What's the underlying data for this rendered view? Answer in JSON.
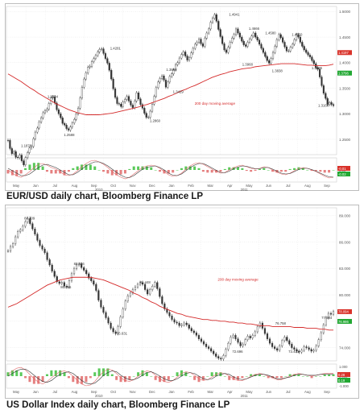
{
  "captions": {
    "chart1": "EUR/USD daily chart, Bloomberg Finance LP",
    "chart2": "US Dollar Index daily chart, Bloomberg Finance LP"
  },
  "colors": {
    "price": "#333333",
    "ma": "#d42a2a",
    "osc_green": "#3cbf3c",
    "osc_red": "#e06a6a",
    "tag_red": "#d9322a",
    "tag_green": "#22a833",
    "grid": "#e2e2e2"
  },
  "chart_data": [
    {
      "type": "line",
      "title": "EUR/USD daily chart, Bloomberg Finance LP",
      "y_ticks": [
        "1.5000",
        "1.4500",
        "1.4000",
        "1.3500",
        "1.3000",
        "1.2500"
      ],
      "ylim": [
        1.22,
        1.51
      ],
      "x_month_labels": [
        "May",
        "Jun",
        "Jul",
        "Aug",
        "Sep",
        "Oct",
        "Nov",
        "Dec",
        "Jan",
        "Feb",
        "Mar",
        "Apr",
        "May",
        "Jun",
        "Jul",
        "Aug",
        "Sep"
      ],
      "x_year_labels": [
        "2010",
        "2011"
      ],
      "ma_label": "200 day moving average",
      "annotations": [
        {
          "text": "1.1876",
          "x": 0.06,
          "y": 1.1876
        },
        {
          "text": "1.3334",
          "x": 0.14,
          "y": 1.3334
        },
        {
          "text": "1.2588",
          "x": 0.19,
          "y": 1.2588
        },
        {
          "text": "1.4281",
          "x": 0.33,
          "y": 1.4281
        },
        {
          "text": "1.3863",
          "x": 0.5,
          "y": 1.3863
        },
        {
          "text": "1.2860",
          "x": 0.45,
          "y": 1.286
        },
        {
          "text": "1.3429",
          "x": 0.52,
          "y": 1.3429
        },
        {
          "text": "1.4941",
          "x": 0.69,
          "y": 1.4941
        },
        {
          "text": "1.4666",
          "x": 0.75,
          "y": 1.4666
        },
        {
          "text": "1.3968",
          "x": 0.73,
          "y": 1.3968
        },
        {
          "text": "1.4580",
          "x": 0.8,
          "y": 1.458
        },
        {
          "text": "1.3838",
          "x": 0.82,
          "y": 1.3838
        },
        {
          "text": "1.4550",
          "x": 0.88,
          "y": 1.455
        },
        {
          "text": "1.3895",
          "x": 0.94,
          "y": 1.3895
        },
        {
          "text": "1.3164",
          "x": 0.96,
          "y": 1.3164
        }
      ],
      "price_tags": [
        {
          "text": "1.4197",
          "y": 1.4197,
          "color": "red"
        },
        {
          "text": "1.3796",
          "y": 1.3796,
          "color": "green"
        }
      ],
      "osc_tags": [
        {
          "text": "-0.01",
          "color": "red"
        },
        {
          "text": "-0.02",
          "color": "green"
        }
      ],
      "osc_ticks": [
        "0.00"
      ],
      "series": [
        {
          "name": "price",
          "values": [
            1.248,
            1.232,
            1.222,
            1.226,
            1.215,
            1.214,
            1.219,
            1.208,
            1.2,
            1.214,
            1.224,
            1.233,
            1.236,
            1.251,
            1.264,
            1.272,
            1.284,
            1.292,
            1.302,
            1.306,
            1.309,
            1.32,
            1.331,
            1.333,
            1.321,
            1.308,
            1.3,
            1.292,
            1.281,
            1.278,
            1.271,
            1.268,
            1.274,
            1.282,
            1.289,
            1.3,
            1.311,
            1.331,
            1.352,
            1.368,
            1.38,
            1.391,
            1.393,
            1.402,
            1.408,
            1.414,
            1.421,
            1.426,
            1.427,
            1.418,
            1.408,
            1.399,
            1.385,
            1.368,
            1.349,
            1.332,
            1.32,
            1.319,
            1.314,
            1.323,
            1.328,
            1.334,
            1.325,
            1.317,
            1.312,
            1.325,
            1.341,
            1.329,
            1.318,
            1.311,
            1.301,
            1.293,
            1.293,
            1.305,
            1.319,
            1.334,
            1.351,
            1.362,
            1.369,
            1.374,
            1.366,
            1.352,
            1.362,
            1.373,
            1.378,
            1.386,
            1.396,
            1.4,
            1.409,
            1.416,
            1.421,
            1.413,
            1.405,
            1.41,
            1.419,
            1.428,
            1.436,
            1.44,
            1.446,
            1.437,
            1.432,
            1.448,
            1.458,
            1.466,
            1.479,
            1.487,
            1.494,
            1.481,
            1.465,
            1.451,
            1.437,
            1.425,
            1.42,
            1.43,
            1.44,
            1.448,
            1.455,
            1.466,
            1.458,
            1.45,
            1.442,
            1.435,
            1.432,
            1.44,
            1.446,
            1.452,
            1.458,
            1.45,
            1.444,
            1.436,
            1.428,
            1.42,
            1.412,
            1.404,
            1.399,
            1.408,
            1.42,
            1.432,
            1.445,
            1.455,
            1.449,
            1.44,
            1.431,
            1.423,
            1.423,
            1.43,
            1.436,
            1.445,
            1.455,
            1.45,
            1.44,
            1.432,
            1.425,
            1.42,
            1.415,
            1.411,
            1.404,
            1.398,
            1.39,
            1.387,
            1.372,
            1.355,
            1.34,
            1.33,
            1.318,
            1.322,
            1.318,
            1.316
          ]
        },
        {
          "name": "200 day moving average",
          "values": [
            1.378,
            1.373,
            1.368,
            1.363,
            1.357,
            1.351,
            1.346,
            1.34,
            1.335,
            1.33,
            1.325,
            1.32,
            1.316,
            1.312,
            1.308,
            1.305,
            1.302,
            1.3,
            1.298,
            1.298,
            1.298,
            1.298,
            1.299,
            1.3,
            1.301,
            1.303,
            1.305,
            1.307,
            1.309,
            1.311,
            1.313,
            1.316,
            1.318,
            1.321,
            1.324,
            1.327,
            1.33,
            1.334,
            1.337,
            1.341,
            1.345,
            1.348,
            1.352,
            1.355,
            1.359,
            1.363,
            1.367,
            1.371,
            1.374,
            1.377,
            1.379,
            1.382,
            1.384,
            1.386,
            1.388,
            1.389,
            1.39,
            1.392,
            1.393,
            1.394,
            1.395,
            1.396,
            1.397,
            1.398,
            1.398,
            1.398,
            1.398,
            1.397,
            1.396,
            1.395,
            1.395,
            1.394,
            1.394,
            1.394,
            1.395,
            1.397
          ]
        }
      ],
      "osc_series": [
        {
          "name": "fast",
          "values": [
            0.0,
            -0.008,
            -0.015,
            -0.018,
            -0.012,
            -0.004,
            0.006,
            0.014,
            0.016,
            0.012,
            0.006,
            0.002,
            -0.004,
            -0.012,
            -0.014,
            -0.01,
            -0.002,
            0.008,
            0.016,
            0.022,
            0.024,
            0.02,
            0.014,
            0.006,
            -0.004,
            -0.012,
            -0.018,
            -0.022,
            -0.018,
            -0.01,
            -0.002,
            0.006,
            0.01,
            0.012,
            0.01,
            0.004,
            -0.004,
            -0.012,
            -0.016,
            -0.014,
            -0.008,
            0.002,
            0.01,
            0.016,
            0.018,
            0.014,
            0.008,
            0.002,
            -0.004,
            -0.008,
            -0.006,
            0.0,
            0.006,
            0.01,
            0.012,
            0.008,
            0.004,
            0.002,
            0.004,
            0.008,
            0.006,
            0.0,
            -0.006,
            -0.01,
            -0.012,
            -0.008,
            -0.002,
            0.004,
            0.006,
            0.004,
            0.0,
            -0.004,
            -0.01,
            -0.016,
            -0.02,
            -0.018
          ]
        },
        {
          "name": "slow",
          "values": [
            0.004,
            -0.002,
            -0.008,
            -0.014,
            -0.014,
            -0.01,
            -0.002,
            0.006,
            0.012,
            0.014,
            0.01,
            0.006,
            0.0,
            -0.006,
            -0.012,
            -0.012,
            -0.006,
            0.002,
            0.01,
            0.016,
            0.02,
            0.02,
            0.016,
            0.01,
            0.002,
            -0.006,
            -0.013,
            -0.018,
            -0.019,
            -0.014,
            -0.006,
            0.002,
            0.006,
            0.009,
            0.01,
            0.006,
            0.0,
            -0.008,
            -0.013,
            -0.014,
            -0.01,
            -0.002,
            0.006,
            0.012,
            0.016,
            0.016,
            0.011,
            0.005,
            -0.001,
            -0.006,
            -0.007,
            -0.003,
            0.003,
            0.007,
            0.01,
            0.009,
            0.006,
            0.003,
            0.003,
            0.006,
            0.006,
            0.002,
            -0.003,
            -0.008,
            -0.01,
            -0.009,
            -0.004,
            0.001,
            0.004,
            0.004,
            0.001,
            -0.003,
            -0.008,
            -0.013,
            -0.017,
            -0.018
          ]
        }
      ]
    },
    {
      "type": "line",
      "title": "US Dollar Index daily chart, Bloomberg Finance LP",
      "y_ticks": [
        "89.000",
        "86.000",
        "83.000",
        "80.000",
        "77.000",
        "74.000"
      ],
      "ylim": [
        72.5,
        89.9
      ],
      "x_month_labels": [
        "May",
        "Jun",
        "Jul",
        "Aug",
        "Sep",
        "Oct",
        "Nov",
        "Dec",
        "Jan",
        "Feb",
        "Mar",
        "Apr",
        "May",
        "Jun",
        "Jul",
        "Aug",
        "Sep"
      ],
      "x_year_labels": [
        "2010",
        "2011"
      ],
      "ma_label": "200 day moving average",
      "annotations": [
        {
          "text": "88.709",
          "x": 0.07,
          "y": 88.709
        },
        {
          "text": "83.556",
          "x": 0.22,
          "y": 83.556
        },
        {
          "text": "80.865",
          "x": 0.18,
          "y": 80.865
        },
        {
          "text": "81.448",
          "x": 0.42,
          "y": 81.448
        },
        {
          "text": "75.631",
          "x": 0.35,
          "y": 75.631
        },
        {
          "text": "76.758",
          "x": 0.83,
          "y": 76.758
        },
        {
          "text": "72.696",
          "x": 0.7,
          "y": 72.696
        },
        {
          "text": "73.421",
          "x": 0.87,
          "y": 73.421
        },
        {
          "text": "77.384",
          "x": 0.97,
          "y": 77.384
        }
      ],
      "price_tags": [
        {
          "text": "78.094",
          "y": 78.094,
          "color": "red"
        },
        {
          "text": "76.986",
          "y": 76.986,
          "color": "green"
        }
      ],
      "osc_tags": [
        {
          "text": "0.28",
          "color": "red"
        },
        {
          "text": "0.19",
          "color": "green"
        }
      ],
      "osc_ticks": [
        "1.000",
        "0.000",
        "-1.000"
      ],
      "series": [
        {
          "name": "price",
          "values": [
            85.0,
            85.5,
            85.8,
            86.6,
            87.2,
            87.4,
            87.8,
            88.3,
            88.7,
            88.1,
            87.5,
            86.9,
            86.2,
            85.6,
            85.2,
            84.8,
            84.0,
            83.4,
            82.7,
            82.1,
            81.5,
            81.3,
            81.4,
            81.0,
            80.9,
            81.6,
            82.4,
            83.0,
            83.4,
            83.5,
            83.1,
            82.8,
            82.4,
            81.9,
            81.6,
            81.2,
            80.5,
            79.4,
            78.6,
            78.0,
            77.4,
            76.8,
            76.2,
            75.8,
            75.6,
            76.4,
            77.5,
            78.4,
            79.3,
            79.9,
            80.2,
            80.6,
            80.9,
            81.2,
            81.4,
            81.2,
            80.6,
            80.1,
            80.6,
            81.0,
            81.4,
            80.7,
            79.8,
            79.0,
            78.4,
            78.0,
            77.6,
            77.2,
            76.9,
            76.8,
            76.5,
            76.6,
            76.8,
            76.6,
            76.2,
            75.9,
            75.7,
            75.4,
            75.0,
            74.7,
            74.4,
            74.1,
            73.9,
            73.6,
            73.3,
            73.0,
            72.8,
            72.7,
            73.1,
            73.8,
            74.5,
            75.2,
            75.4,
            75.0,
            74.6,
            74.2,
            74.4,
            74.9,
            75.3,
            75.1,
            75.4,
            75.8,
            76.4,
            76.8,
            76.2,
            75.6,
            75.0,
            74.5,
            74.1,
            73.9,
            73.7,
            74.2,
            74.8,
            75.2,
            74.8,
            74.4,
            74.0,
            73.8,
            73.6,
            73.5,
            73.7,
            74.1,
            74.0,
            73.8,
            73.6,
            73.7,
            74.2,
            74.9,
            75.7,
            76.6,
            77.4,
            77.9,
            77.8,
            78.1
          ]
        },
        {
          "name": "200 day moving average",
          "values": [
            78.6,
            78.8,
            79.0,
            79.3,
            79.6,
            79.9,
            80.2,
            80.5,
            80.8,
            81.1,
            81.3,
            81.5,
            81.7,
            81.8,
            81.9,
            82.0,
            82.0,
            82.0,
            82.0,
            82.0,
            81.9,
            81.8,
            81.7,
            81.5,
            81.3,
            81.1,
            80.9,
            80.7,
            80.5,
            80.2,
            80.0,
            79.7,
            79.5,
            79.2,
            79.0,
            78.7,
            78.5,
            78.3,
            78.1,
            77.9,
            77.8,
            77.6,
            77.5,
            77.4,
            77.3,
            77.2,
            77.2,
            77.1,
            77.1,
            77.0,
            77.0,
            76.9,
            76.9,
            76.8,
            76.8,
            76.7,
            76.7,
            76.6,
            76.5,
            76.5,
            76.5,
            76.4,
            76.4,
            76.4,
            76.4,
            76.4,
            76.3,
            76.3,
            76.3,
            76.2,
            76.2,
            76.2,
            76.1,
            76.1,
            76.0,
            76.0
          ]
        }
      ],
      "osc_series": [
        {
          "name": "fast",
          "values": [
            0.2,
            0.6,
            0.9,
            1.0,
            0.7,
            0.2,
            -0.3,
            -0.7,
            -0.9,
            -0.6,
            -0.2,
            0.2,
            0.5,
            0.6,
            0.4,
            0.0,
            -0.5,
            -0.9,
            -1.1,
            -1.0,
            -0.6,
            0.0,
            0.5,
            0.8,
            0.7,
            0.3,
            -0.2,
            -0.5,
            -0.6,
            -0.4,
            0.0,
            0.4,
            0.6,
            0.5,
            0.1,
            -0.3,
            -0.6,
            -0.7,
            -0.5,
            -0.1,
            0.3,
            0.5,
            0.4,
            0.1,
            -0.3,
            -0.5,
            -0.4,
            -0.1,
            0.2,
            0.4,
            0.3,
            0.0,
            -0.3,
            -0.5,
            -0.5,
            -0.3,
            0.0,
            0.2,
            0.3,
            0.2,
            0.0,
            -0.2,
            -0.4,
            -0.4,
            -0.2,
            0.0,
            0.2,
            0.3,
            0.2,
            0.1,
            0.0,
            0.1,
            0.2,
            0.3,
            0.3,
            0.3
          ]
        },
        {
          "name": "slow",
          "values": [
            0.0,
            0.3,
            0.6,
            0.8,
            0.8,
            0.5,
            0.1,
            -0.3,
            -0.6,
            -0.7,
            -0.5,
            -0.1,
            0.2,
            0.4,
            0.5,
            0.3,
            -0.1,
            -0.5,
            -0.8,
            -0.9,
            -0.8,
            -0.4,
            0.1,
            0.4,
            0.6,
            0.5,
            0.1,
            -0.2,
            -0.4,
            -0.4,
            -0.2,
            0.1,
            0.4,
            0.5,
            0.3,
            0.0,
            -0.3,
            -0.5,
            -0.5,
            -0.3,
            0.0,
            0.3,
            0.4,
            0.3,
            0.0,
            -0.3,
            -0.4,
            -0.3,
            0.0,
            0.2,
            0.3,
            0.2,
            -0.1,
            -0.3,
            -0.4,
            -0.3,
            -0.1,
            0.1,
            0.2,
            0.2,
            0.1,
            -0.1,
            -0.3,
            -0.3,
            -0.2,
            -0.1,
            0.1,
            0.2,
            0.2,
            0.1,
            0.1,
            0.1,
            0.2,
            0.2,
            0.2,
            0.2
          ]
        }
      ]
    }
  ]
}
